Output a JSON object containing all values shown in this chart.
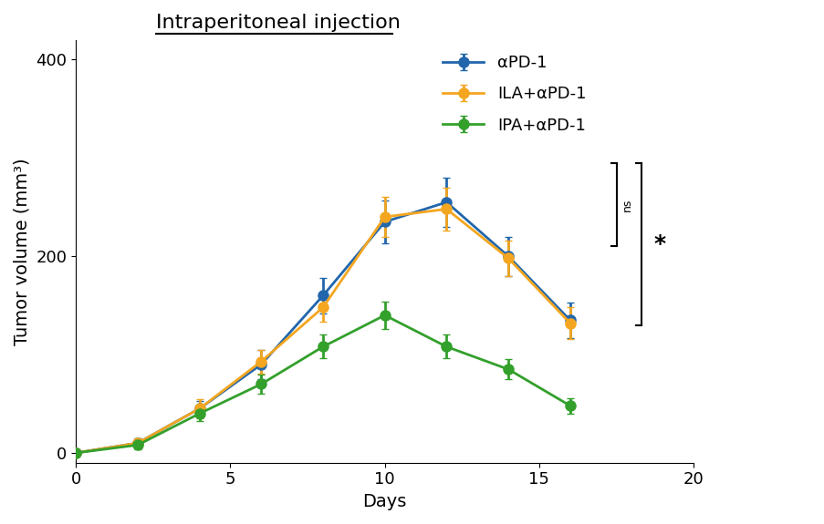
{
  "title": "Intraperitoneal injection",
  "xlabel": "Days",
  "ylabel": "Tumor volume (mm³)",
  "xlim": [
    0,
    20
  ],
  "ylim": [
    -10,
    420
  ],
  "xticks": [
    0,
    5,
    10,
    15,
    20
  ],
  "yticks": [
    0,
    200,
    400
  ],
  "series": [
    {
      "label": "αPD-1",
      "color": "#2166ac",
      "x": [
        0,
        2,
        4,
        6,
        8,
        10,
        12,
        14,
        16
      ],
      "y": [
        0,
        10,
        45,
        90,
        160,
        235,
        255,
        200,
        135
      ],
      "yerr": [
        0,
        5,
        8,
        15,
        18,
        22,
        25,
        20,
        18
      ]
    },
    {
      "label": "ILA+αPD-1",
      "color": "#f4a620",
      "x": [
        0,
        2,
        4,
        6,
        8,
        10,
        12,
        14,
        16
      ],
      "y": [
        0,
        10,
        45,
        93,
        148,
        240,
        248,
        198,
        132
      ],
      "yerr": [
        0,
        5,
        10,
        12,
        15,
        20,
        22,
        18,
        16
      ]
    },
    {
      "label": "IPA+αPD-1",
      "color": "#33a02c",
      "x": [
        0,
        2,
        4,
        6,
        8,
        10,
        12,
        14,
        16
      ],
      "y": [
        0,
        8,
        40,
        70,
        108,
        140,
        108,
        85,
        48
      ],
      "yerr": [
        0,
        4,
        8,
        10,
        12,
        14,
        12,
        10,
        8
      ]
    }
  ],
  "background_color": "#ffffff",
  "title_fontsize": 16,
  "label_fontsize": 14,
  "tick_fontsize": 13,
  "legend_fontsize": 13,
  "marker_size": 8,
  "linewidth": 2.0
}
